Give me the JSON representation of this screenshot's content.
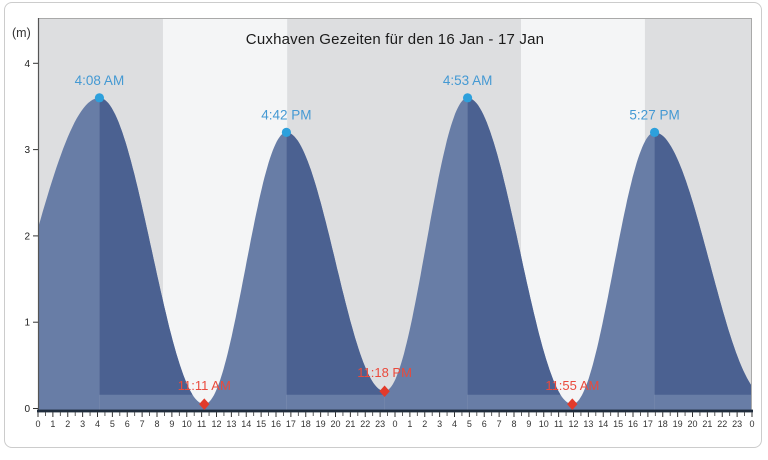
{
  "widget": {
    "title": "Cuxhaven Gezeiten für den 16 Jan - 17 Jan",
    "unit_label": "(m)"
  },
  "chart_data": {
    "type": "area",
    "title": "Cuxhaven Gezeiten für den 16 Jan - 17 Jan",
    "ylabel": "(m)",
    "ylim": [
      0,
      4.3
    ],
    "x_hours_range": [
      0,
      48
    ],
    "y_tick_labels": [
      "0",
      "1",
      "2",
      "3",
      "4"
    ],
    "x_tick_labels": [
      "0",
      "1",
      "2",
      "3",
      "4",
      "5",
      "6",
      "7",
      "8",
      "9",
      "10",
      "11",
      "12",
      "13",
      "14",
      "15",
      "16",
      "17",
      "18",
      "19",
      "20",
      "21",
      "22",
      "23",
      "0",
      "1",
      "2",
      "3",
      "4",
      "5",
      "6",
      "7",
      "8",
      "9",
      "10",
      "11",
      "12",
      "13",
      "14",
      "15",
      "16",
      "17",
      "18",
      "19",
      "20",
      "21",
      "22",
      "23",
      "0"
    ],
    "daylight_bands_hours": [
      [
        8.4,
        16.75
      ],
      [
        32.47,
        40.8
      ]
    ],
    "extremes": [
      {
        "type": "offscreen-low",
        "hour": -5.0,
        "height": 0.05
      },
      {
        "type": "high",
        "hour": 4.13,
        "height": 3.6,
        "label": "4:08 AM"
      },
      {
        "type": "low",
        "hour": 11.18,
        "height": 0.05,
        "label": "11:11 AM"
      },
      {
        "type": "high",
        "hour": 16.7,
        "height": 3.2,
        "label": "4:42 PM"
      },
      {
        "type": "low",
        "hour": 23.3,
        "height": 0.2,
        "label": "11:18 PM"
      },
      {
        "type": "high",
        "hour": 28.88,
        "height": 3.6,
        "label": "4:53 AM"
      },
      {
        "type": "low",
        "hour": 35.92,
        "height": 0.05,
        "label": "11:55 AM"
      },
      {
        "type": "high",
        "hour": 41.45,
        "height": 3.2,
        "label": "5:27 PM"
      },
      {
        "type": "offscreen-low",
        "hour": 48.9,
        "height": 0.15
      }
    ],
    "colors": {
      "rising_fill": "#687da6",
      "falling_fill": "#4b6191",
      "night_band": "#dddee0",
      "day_band": "#f4f5f6",
      "axis_line": "#1f2c3c",
      "spine": "#555555",
      "plot_border": "#a9a9a9",
      "tick_text": "#333333",
      "high_marker": "#2da0dc",
      "high_label": "#4499d3",
      "low_marker": "#e23a2a",
      "low_label": "#ea4a3c"
    }
  }
}
